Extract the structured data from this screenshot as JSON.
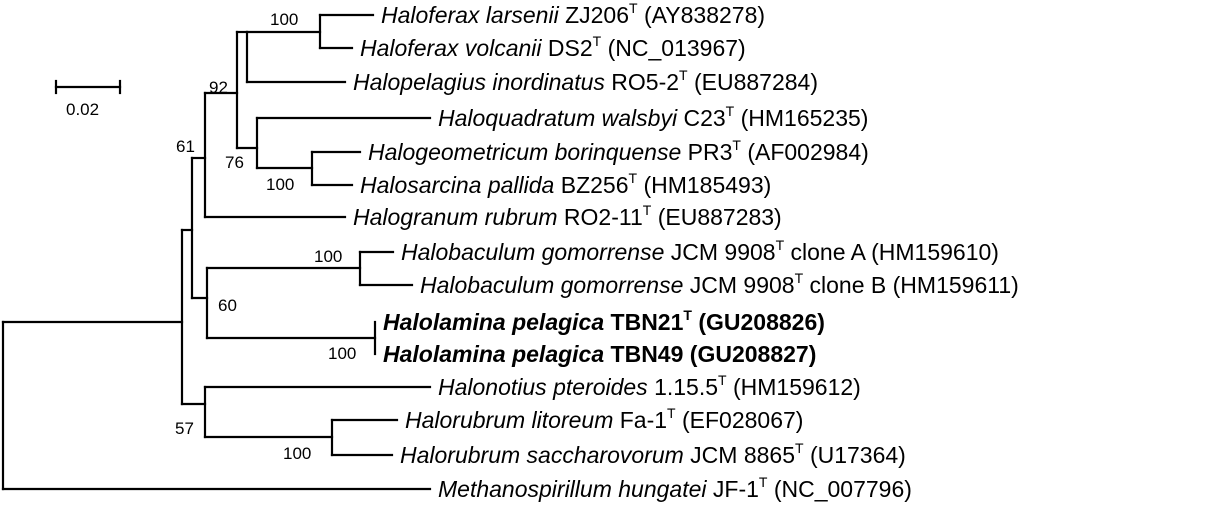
{
  "taxa": [
    {
      "id": "t1",
      "genus": "Haloferax larsenii",
      "strain": "ZJ206",
      "type_strain": true,
      "suffix": "",
      "accession": "(AY838278)",
      "bold": false
    },
    {
      "id": "t2",
      "genus": "Haloferax volcanii",
      "strain": "DS2",
      "type_strain": true,
      "suffix": "",
      "accession": "(NC_013967)",
      "bold": false
    },
    {
      "id": "t3",
      "genus": "Halopelagius inordinatus",
      "strain": "RO5-2",
      "type_strain": true,
      "suffix": "",
      "accession": "(EU887284)",
      "bold": false
    },
    {
      "id": "t4",
      "genus": "Haloquadratum walsbyi",
      "strain": "C23",
      "type_strain": true,
      "suffix": "",
      "accession": "(HM165235)",
      "bold": false
    },
    {
      "id": "t5",
      "genus": "Halogeometricum borinquense",
      "strain": "PR3",
      "type_strain": true,
      "suffix": "",
      "accession": "(AF002984)",
      "bold": false
    },
    {
      "id": "t6",
      "genus": "Halosarcina pallida",
      "strain": "BZ256",
      "type_strain": true,
      "suffix": "",
      "accession": "(HM185493)",
      "bold": false
    },
    {
      "id": "t7",
      "genus": "Halogranum rubrum",
      "strain": "RO2-11",
      "type_strain": true,
      "suffix": "",
      "accession": "(EU887283)",
      "bold": false
    },
    {
      "id": "t8",
      "genus": "Halobaculum gomorrense",
      "strain": "JCM 9908",
      "type_strain": true,
      "suffix": "clone A",
      "accession": "(HM159610)",
      "bold": false
    },
    {
      "id": "t9",
      "genus": "Halobaculum gomorrense",
      "strain": "JCM 9908",
      "type_strain": true,
      "suffix": "clone B",
      "accession": "(HM159611)",
      "bold": false
    },
    {
      "id": "t10",
      "genus": "Halolamina pelagica",
      "strain": "TBN21",
      "type_strain": true,
      "suffix": "",
      "accession": "(GU208826)",
      "bold": true
    },
    {
      "id": "t11",
      "genus": "Halolamina pelagica",
      "strain": "TBN49",
      "type_strain": false,
      "suffix": "",
      "accession": "(GU208827)",
      "bold": true
    },
    {
      "id": "t12",
      "genus": "Halonotius pteroides",
      "strain": "1.15.5",
      "type_strain": true,
      "suffix": "",
      "accession": "(HM159612)",
      "bold": false
    },
    {
      "id": "t13",
      "genus": "Halorubrum litoreum",
      "strain": "Fa-1",
      "type_strain": true,
      "suffix": "",
      "accession": "(EF028067)",
      "bold": false
    },
    {
      "id": "t14",
      "genus": "Halorubrum saccharovorum",
      "strain": "JCM 8865",
      "type_strain": true,
      "suffix": "",
      "accession": "(U17364)",
      "bold": false
    },
    {
      "id": "t15",
      "genus": "Methanospirillum hungatei",
      "strain": "JF-1",
      "type_strain": true,
      "suffix": "",
      "accession": "(NC_007796)",
      "bold": false
    }
  ],
  "type_mark": "T",
  "bootstrap": {
    "ferax": "100",
    "ferax_pelagius": "92",
    "quad_geo_sarcina": "76",
    "geo_sarcina": "100",
    "upper_clade": "61",
    "baculum": "100",
    "baculum_lamina": "60",
    "lamina": "100",
    "notius_rubrum": "57",
    "rubrum": "100"
  },
  "scale_bar": {
    "label": "0.02"
  }
}
